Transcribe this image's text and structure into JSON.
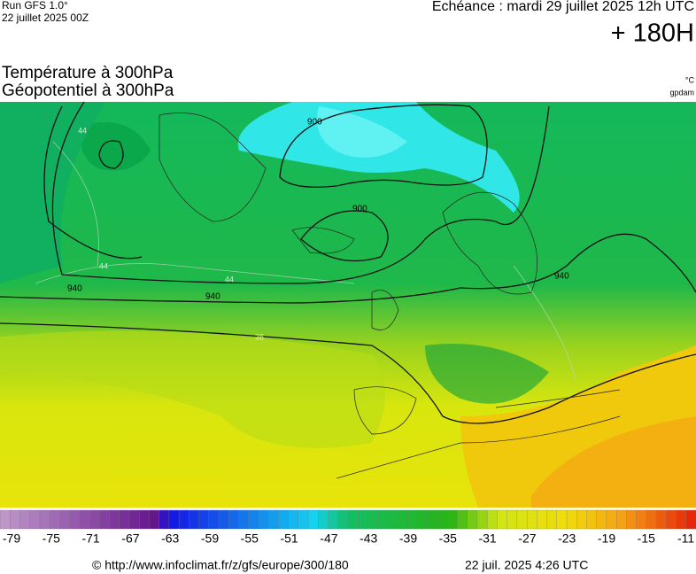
{
  "header": {
    "model": "Run GFS 1.0°",
    "run": "22 juillet 2025 00Z",
    "valid": "Echéance : mardi 29 juillet 2025 12h UTC",
    "lead": "+ 180H"
  },
  "fields": {
    "temperature": "Température à 300hPa",
    "geopotential": "Géopotentiel à 300hPa",
    "temperature_unit": "°C",
    "geopotential_unit": "gpdam"
  },
  "contour_labels": [
    "900",
    "900",
    "940",
    "940",
    "940",
    "44",
    "44",
    "44",
    "36"
  ],
  "colorbar_labels": [
    "-79",
    "-75",
    "-71",
    "-67",
    "-63",
    "-59",
    "-55",
    "-51",
    "-47",
    "-43",
    "-39",
    "-35",
    "-31",
    "-27",
    "-23",
    "-19",
    "-15",
    "-11"
  ],
  "footer": {
    "source": "© http://www.infoclimat.fr/z/gfs/europe/300/180",
    "generated": "22 juil. 2025  4:26 UTC"
  }
}
